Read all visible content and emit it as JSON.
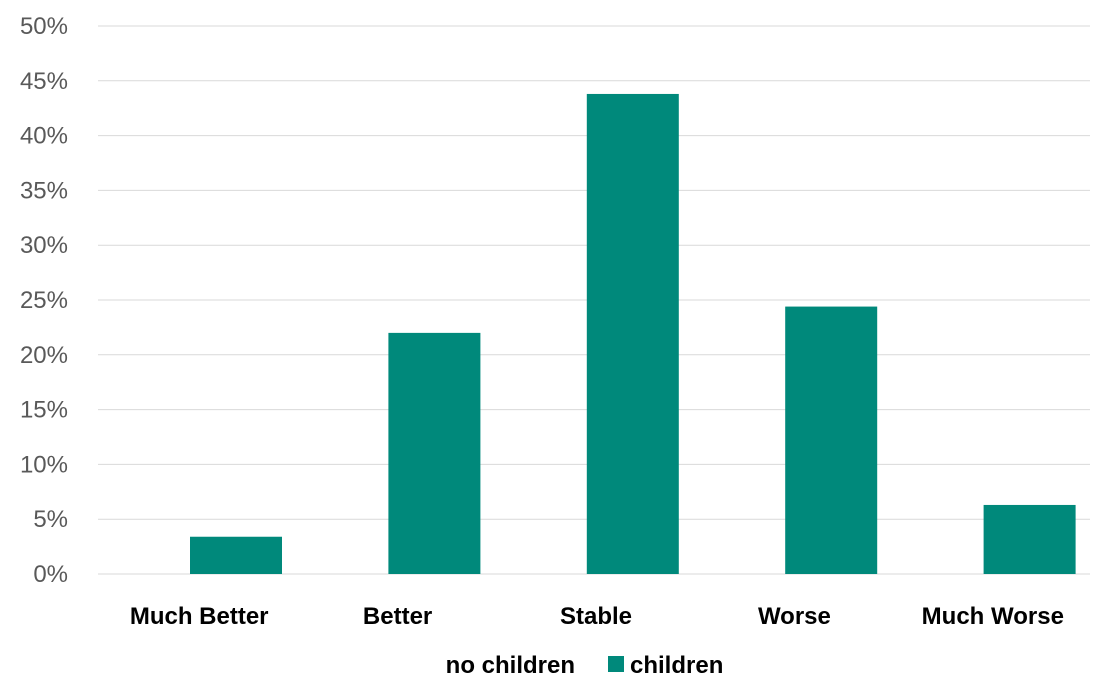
{
  "chart_data": {
    "type": "bar",
    "categories": [
      "Much Better",
      "Better",
      "Stable",
      "Worse",
      "Much Worse"
    ],
    "series": [
      {
        "name": "no children",
        "values": [
          0,
          0,
          0,
          0,
          0
        ],
        "color": "#ffffff"
      },
      {
        "name": "children",
        "values": [
          3.4,
          22.0,
          43.8,
          24.4,
          6.3
        ],
        "color": "#00897B"
      }
    ],
    "ylim": [
      0,
      50
    ],
    "yticks": [
      0,
      5,
      10,
      15,
      20,
      25,
      30,
      35,
      40,
      45,
      50
    ],
    "ytick_suffix": "%",
    "grid": true,
    "legend_position": "bottom"
  }
}
